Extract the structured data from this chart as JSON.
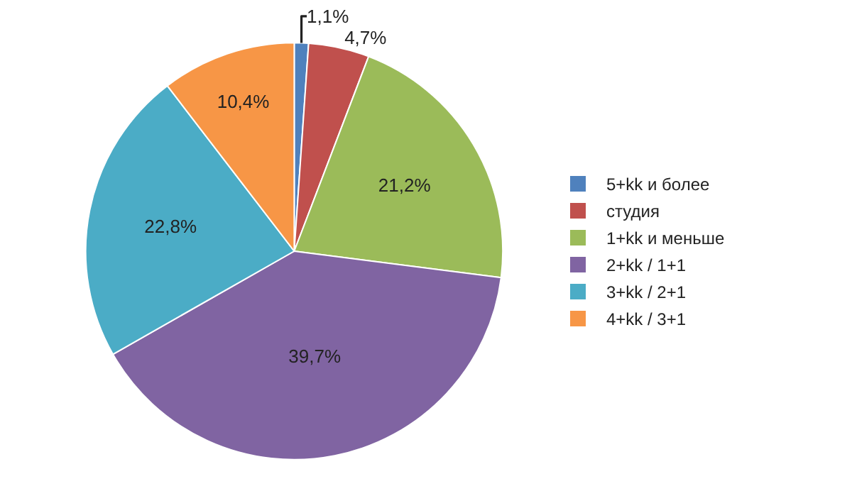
{
  "chart_data": {
    "type": "pie",
    "categories": [
      "5+kk и более",
      "студия",
      "1+kk и меньше",
      "2+kk / 1+1",
      "3+kk / 2+1",
      "4+kk / 3+1"
    ],
    "values": [
      1.1,
      4.7,
      21.2,
      39.7,
      22.8,
      10.4
    ],
    "value_labels": [
      "1,1%",
      "4,7%",
      "21,2%",
      "39,7%",
      "22,8%",
      "10,4%"
    ],
    "colors": [
      "#4f81bd",
      "#c0504d",
      "#9bbb59",
      "#8064a2",
      "#4bacc6",
      "#f79646"
    ],
    "legend": "right"
  }
}
